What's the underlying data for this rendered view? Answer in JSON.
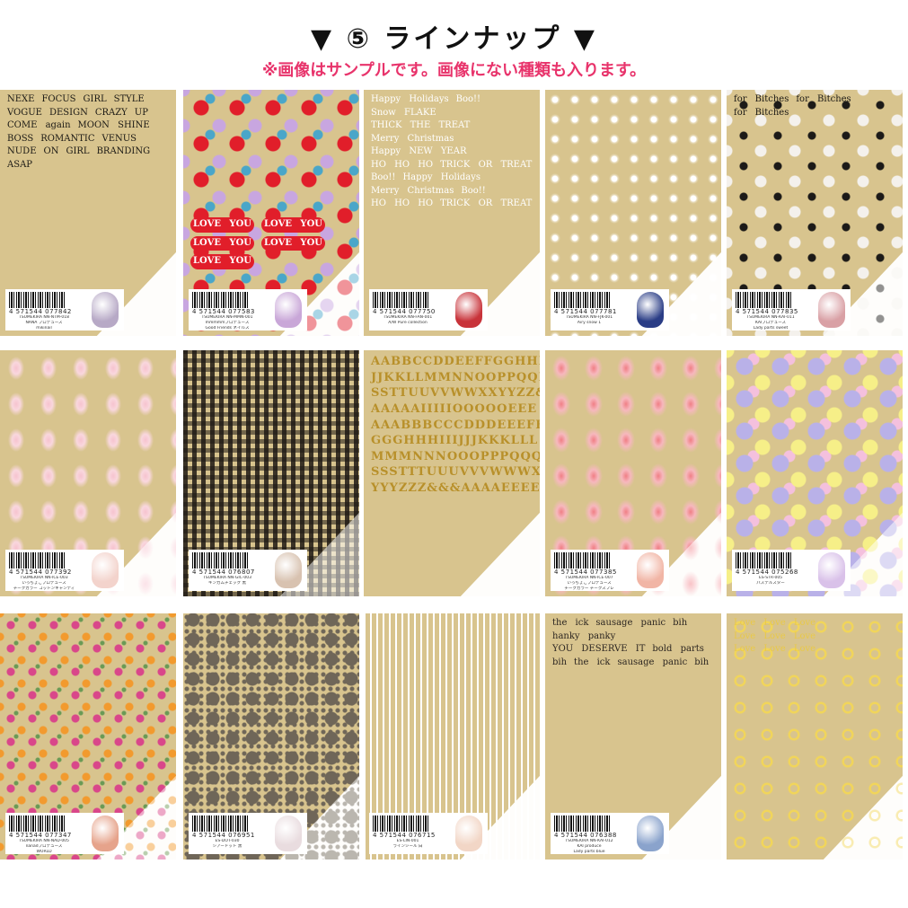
{
  "header": {
    "title": "▼ ⑤ ラインナップ ▼",
    "note": "※画像はサンプルです。画像にない種類も入ります。"
  },
  "colors": {
    "sheet": "#d8c48e",
    "note": "#e8336b"
  },
  "products": [
    {
      "pattern": "words-black",
      "barcode": "4 571544 077842",
      "lines": [
        "TSUMEKIRA NN-NTM-018",
        "NANA プロデュース",
        "mikinail"
      ],
      "nail": "#b7a9c6",
      "words": [
        "NEXE",
        "FOCUS",
        "GIRL",
        "STYLE",
        "VOGUE",
        "DESIGN",
        "CRAZY",
        "UP",
        "COME again",
        "MOON SHINE",
        "BOSS",
        "ROMANTIC",
        "VENUS",
        "NUDE",
        "ON",
        "GIRL",
        "BRANDING",
        "ASAP"
      ]
    },
    {
      "pattern": "hearts",
      "barcode": "4 571544 077583",
      "lines": [
        "TSUMEKIRA NN-MMN-001",
        "mmmmmプロデュース",
        "Good Friends ネイルス"
      ],
      "nail": "#c9a7d8",
      "words": [
        "LOVE YOU",
        "LOVE YOU",
        "LOVE YOU",
        "LOVE YOU",
        "LOVE YOU"
      ]
    },
    {
      "pattern": "words-holiday",
      "barcode": "4 571544 077750",
      "lines": [
        "TSUMEKIRA NN-FAN-001",
        "A/W Pure collection"
      ],
      "nail": "#c8333a",
      "words": [
        "Happy Holidays",
        "Boo!!",
        "Snow FLAKE",
        "THICK THE TREAT",
        "Merry Christmas",
        "Happy NEW YEAR",
        "HO HO HO",
        "TRICK OR TREAT",
        "Boo!!",
        "Happy Holidays",
        "Merry Christmas",
        "Boo!!",
        "HO HO HO",
        "TRICK OR TREAT"
      ]
    },
    {
      "pattern": "snow",
      "barcode": "4 571544 077781",
      "lines": [
        "TSUMEKIRA NN-FJK-001",
        "Airy snow 1"
      ],
      "nail": "#2a3d86"
    },
    {
      "pattern": "bows",
      "barcode": "4 571544 077835",
      "lines": [
        "TSUMEKIRA NN-KAI-011",
        "KAIプロデュース",
        "Lady parts sweet"
      ],
      "nail": "#d9a0a5",
      "words": [
        "for Bitches",
        "for Bitches",
        "for Bitches"
      ]
    },
    {
      "pattern": "pink-dots",
      "barcode": "4 571544 077392",
      "lines": [
        "TSUMEKIRA NN-ICE-003",
        "いっちょこプロデュース",
        "チークカラー コットンキャンディ"
      ],
      "nail": "#f3d3cc"
    },
    {
      "pattern": "gingham",
      "barcode": "4 571544 076807",
      "lines": [
        "TSUMEKIRA NN-GIC-003",
        "ギンガムチェック 黒"
      ],
      "nail": "#d8c2b0"
    },
    {
      "pattern": "letters",
      "words": [
        "AABBCCDDEEFFGGHHII",
        "JJKKLLMMNNOOPPQQRR",
        "SSTTUUVVWWXXYYZZ&&",
        "AAAAAIIIIIOOOOOEEE",
        "AAABBBCCCDDDEEEFFF",
        "GGGHHHIIIJJJKKKLLL",
        "MMMNNNOOOPPPQQQRRR",
        "SSSTTTUUUVVVWWWXXX",
        "YYYZZZ&&&AAAAEEEE"
      ]
    },
    {
      "pattern": "red-dots",
      "barcode": "4 571544 077385",
      "lines": [
        "TSUMEKIRA NN-ICE-007",
        "いっちょこプロデュース",
        "チークカラー チークスフレ"
      ],
      "nail": "#f1b5a5"
    },
    {
      "pattern": "stars",
      "barcode": "4 571544 075268",
      "lines": [
        "ES-STR-005",
        "パステルスター"
      ],
      "nail": "#d9c1e9"
    },
    {
      "pattern": "flowers",
      "barcode": "4 571544 077347",
      "lines": [
        "TSUMEKIRA NN-NAD-005",
        "nanadプロデュース",
        "WORLD"
      ],
      "nail": "#e6a38b"
    },
    {
      "pattern": "grey-dots",
      "barcode": "4 571544 076951",
      "lines": [
        "ES-DOT-030",
        "シアードット 黒"
      ],
      "nail": "#e9dcdf"
    },
    {
      "pattern": "lines",
      "barcode": "4 571544 076715",
      "lines": [
        "ES-LIN-001",
        "ラインシール 白"
      ],
      "nail": "#f2d6c6"
    },
    {
      "pattern": "mixed",
      "barcode": "4 571544 076388",
      "lines": [
        "TSUMEKIRA NN-KAI-012",
        "KAI produce",
        "Lady parts blue"
      ],
      "nail": "#8aa3cc",
      "words": [
        "the ick",
        "sausage panic",
        "bih",
        "hanky panky",
        "YOU DESERVE IT",
        "bold parts",
        "bih",
        "the ick",
        "sausage panic",
        "bih"
      ]
    },
    {
      "pattern": "gold-bows",
      "words": [
        "Love Love Love",
        "Love Love Love",
        "Love Love Love"
      ]
    }
  ]
}
